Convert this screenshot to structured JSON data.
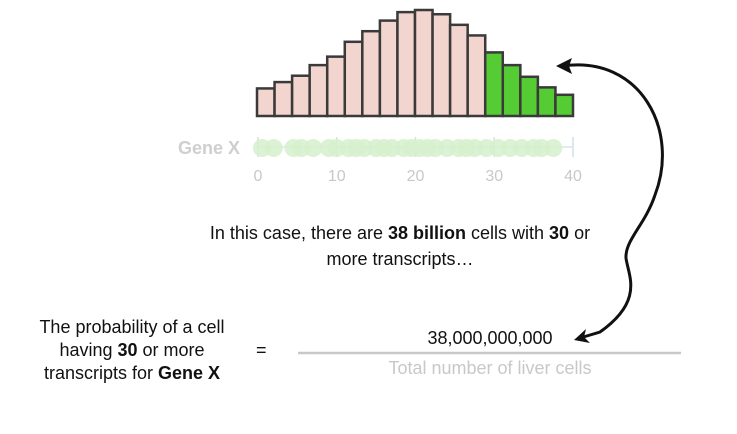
{
  "histogram": {
    "gene_label": "Gene X",
    "ticks": [
      "0",
      "10",
      "20",
      "30",
      "40"
    ],
    "tick_values": [
      0,
      10,
      20,
      30,
      40
    ],
    "x_range": [
      0,
      40
    ],
    "bar_heights_relative": [
      0.26,
      0.32,
      0.38,
      0.48,
      0.56,
      0.7,
      0.8,
      0.9,
      0.98,
      1.0,
      0.96,
      0.86,
      0.76,
      0.6,
      0.48,
      0.37,
      0.27,
      0.2
    ],
    "highlight_from_index": 13,
    "bar_fill": "#f2d5cf",
    "highlight_fill": "#55cc33",
    "dot_values": [
      0.5,
      2,
      4.5,
      5.5,
      7,
      9,
      10,
      11.5,
      12.5,
      13.5,
      15,
      16,
      17,
      18.5,
      19.5,
      20.5,
      21.5,
      22.5,
      24,
      25.5,
      26.5,
      27.5,
      29,
      30.5,
      32,
      33.5,
      35,
      36,
      37.5
    ],
    "dot_color": "#d6f0cd"
  },
  "caption": {
    "pre": "In this case, there are ",
    "bold1": "38 billion",
    "mid": " cells with ",
    "bold2": "30",
    "post1": " or",
    "line2": "more transcripts…"
  },
  "lhs": {
    "line1": "The probability of a cell",
    "line2_pre": "having ",
    "line2_bold": "30",
    "line2_post": " or more",
    "line3_pre": "transcripts for ",
    "line3_bold": "Gene X"
  },
  "equals": "=",
  "fraction": {
    "numerator": "38,000,000,000",
    "denominator": "Total number of liver cells"
  }
}
